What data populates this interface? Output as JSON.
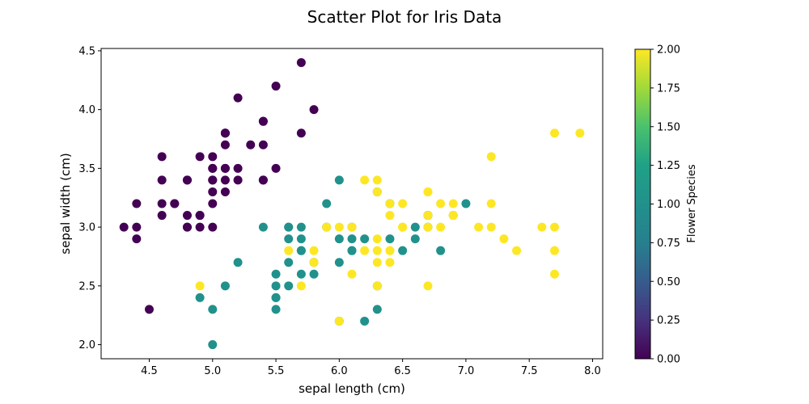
{
  "chart_data": {
    "type": "scatter",
    "title": "Scatter Plot for Iris Data",
    "xlabel": "sepal length (cm)",
    "ylabel": "sepal width (cm)",
    "xlim": [
      4.12,
      8.08
    ],
    "ylim": [
      1.88,
      4.52
    ],
    "x_ticks": [
      "4.5",
      "5.0",
      "5.5",
      "6.0",
      "6.5",
      "7.0",
      "7.5",
      "8.0"
    ],
    "y_ticks": [
      "2.0",
      "2.5",
      "3.0",
      "3.5",
      "4.0",
      "4.5"
    ],
    "grid": false,
    "colorbar": {
      "label": "Flower Species",
      "range": [
        0,
        2
      ],
      "colormap": "viridis",
      "ticks": [
        "0.00",
        "0.25",
        "0.50",
        "0.75",
        "1.00",
        "1.25",
        "1.50",
        "1.75",
        "2.00"
      ]
    },
    "colors": {
      "0": "#440154",
      "1": "#21918c",
      "2": "#fde725"
    },
    "points": [
      {
        "x": 5.1,
        "y": 3.5,
        "c": 0
      },
      {
        "x": 4.9,
        "y": 3.0,
        "c": 0
      },
      {
        "x": 4.7,
        "y": 3.2,
        "c": 0
      },
      {
        "x": 4.6,
        "y": 3.1,
        "c": 0
      },
      {
        "x": 5.0,
        "y": 3.6,
        "c": 0
      },
      {
        "x": 5.4,
        "y": 3.9,
        "c": 0
      },
      {
        "x": 4.6,
        "y": 3.4,
        "c": 0
      },
      {
        "x": 5.0,
        "y": 3.4,
        "c": 0
      },
      {
        "x": 4.4,
        "y": 2.9,
        "c": 0
      },
      {
        "x": 4.9,
        "y": 3.1,
        "c": 0
      },
      {
        "x": 5.4,
        "y": 3.7,
        "c": 0
      },
      {
        "x": 4.8,
        "y": 3.4,
        "c": 0
      },
      {
        "x": 4.8,
        "y": 3.0,
        "c": 0
      },
      {
        "x": 4.3,
        "y": 3.0,
        "c": 0
      },
      {
        "x": 5.8,
        "y": 4.0,
        "c": 0
      },
      {
        "x": 5.7,
        "y": 4.4,
        "c": 0
      },
      {
        "x": 5.4,
        "y": 3.9,
        "c": 0
      },
      {
        "x": 5.1,
        "y": 3.5,
        "c": 0
      },
      {
        "x": 5.7,
        "y": 3.8,
        "c": 0
      },
      {
        "x": 5.1,
        "y": 3.8,
        "c": 0
      },
      {
        "x": 5.4,
        "y": 3.4,
        "c": 0
      },
      {
        "x": 5.1,
        "y": 3.7,
        "c": 0
      },
      {
        "x": 4.6,
        "y": 3.6,
        "c": 0
      },
      {
        "x": 5.1,
        "y": 3.3,
        "c": 0
      },
      {
        "x": 4.8,
        "y": 3.4,
        "c": 0
      },
      {
        "x": 5.0,
        "y": 3.0,
        "c": 0
      },
      {
        "x": 5.0,
        "y": 3.4,
        "c": 0
      },
      {
        "x": 5.2,
        "y": 3.5,
        "c": 0
      },
      {
        "x": 5.2,
        "y": 3.4,
        "c": 0
      },
      {
        "x": 4.7,
        "y": 3.2,
        "c": 0
      },
      {
        "x": 4.8,
        "y": 3.1,
        "c": 0
      },
      {
        "x": 5.4,
        "y": 3.4,
        "c": 0
      },
      {
        "x": 5.2,
        "y": 4.1,
        "c": 0
      },
      {
        "x": 5.5,
        "y": 4.2,
        "c": 0
      },
      {
        "x": 4.9,
        "y": 3.1,
        "c": 0
      },
      {
        "x": 5.0,
        "y": 3.2,
        "c": 0
      },
      {
        "x": 5.5,
        "y": 3.5,
        "c": 0
      },
      {
        "x": 4.9,
        "y": 3.6,
        "c": 0
      },
      {
        "x": 4.4,
        "y": 3.0,
        "c": 0
      },
      {
        "x": 5.1,
        "y": 3.4,
        "c": 0
      },
      {
        "x": 5.0,
        "y": 3.5,
        "c": 0
      },
      {
        "x": 4.5,
        "y": 2.3,
        "c": 0
      },
      {
        "x": 4.4,
        "y": 3.2,
        "c": 0
      },
      {
        "x": 5.0,
        "y": 3.5,
        "c": 0
      },
      {
        "x": 5.1,
        "y": 3.8,
        "c": 0
      },
      {
        "x": 4.8,
        "y": 3.0,
        "c": 0
      },
      {
        "x": 5.1,
        "y": 3.8,
        "c": 0
      },
      {
        "x": 4.6,
        "y": 3.2,
        "c": 0
      },
      {
        "x": 5.3,
        "y": 3.7,
        "c": 0
      },
      {
        "x": 5.0,
        "y": 3.3,
        "c": 0
      },
      {
        "x": 7.0,
        "y": 3.2,
        "c": 1
      },
      {
        "x": 6.4,
        "y": 3.2,
        "c": 1
      },
      {
        "x": 6.9,
        "y": 3.1,
        "c": 1
      },
      {
        "x": 5.5,
        "y": 2.3,
        "c": 1
      },
      {
        "x": 6.5,
        "y": 2.8,
        "c": 1
      },
      {
        "x": 5.7,
        "y": 2.8,
        "c": 1
      },
      {
        "x": 6.3,
        "y": 3.3,
        "c": 1
      },
      {
        "x": 4.9,
        "y": 2.4,
        "c": 1
      },
      {
        "x": 6.6,
        "y": 2.9,
        "c": 1
      },
      {
        "x": 5.2,
        "y": 2.7,
        "c": 1
      },
      {
        "x": 5.0,
        "y": 2.0,
        "c": 1
      },
      {
        "x": 5.9,
        "y": 3.0,
        "c": 1
      },
      {
        "x": 6.0,
        "y": 2.2,
        "c": 1
      },
      {
        "x": 6.1,
        "y": 2.9,
        "c": 1
      },
      {
        "x": 5.6,
        "y": 2.9,
        "c": 1
      },
      {
        "x": 6.7,
        "y": 3.1,
        "c": 1
      },
      {
        "x": 5.6,
        "y": 3.0,
        "c": 1
      },
      {
        "x": 5.8,
        "y": 2.7,
        "c": 1
      },
      {
        "x": 6.2,
        "y": 2.2,
        "c": 1
      },
      {
        "x": 5.6,
        "y": 2.5,
        "c": 1
      },
      {
        "x": 5.9,
        "y": 3.2,
        "c": 1
      },
      {
        "x": 6.1,
        "y": 2.8,
        "c": 1
      },
      {
        "x": 6.3,
        "y": 2.5,
        "c": 1
      },
      {
        "x": 6.1,
        "y": 2.8,
        "c": 1
      },
      {
        "x": 6.4,
        "y": 2.9,
        "c": 1
      },
      {
        "x": 6.6,
        "y": 3.0,
        "c": 1
      },
      {
        "x": 6.8,
        "y": 2.8,
        "c": 1
      },
      {
        "x": 6.7,
        "y": 3.0,
        "c": 1
      },
      {
        "x": 6.0,
        "y": 2.9,
        "c": 1
      },
      {
        "x": 5.7,
        "y": 2.6,
        "c": 1
      },
      {
        "x": 5.5,
        "y": 2.4,
        "c": 1
      },
      {
        "x": 5.5,
        "y": 2.4,
        "c": 1
      },
      {
        "x": 5.8,
        "y": 2.7,
        "c": 1
      },
      {
        "x": 6.0,
        "y": 2.7,
        "c": 1
      },
      {
        "x": 5.4,
        "y": 3.0,
        "c": 1
      },
      {
        "x": 6.0,
        "y": 3.4,
        "c": 1
      },
      {
        "x": 6.7,
        "y": 3.1,
        "c": 1
      },
      {
        "x": 6.3,
        "y": 2.3,
        "c": 1
      },
      {
        "x": 5.6,
        "y": 3.0,
        "c": 1
      },
      {
        "x": 5.5,
        "y": 2.5,
        "c": 1
      },
      {
        "x": 5.5,
        "y": 2.6,
        "c": 1
      },
      {
        "x": 6.1,
        "y": 3.0,
        "c": 1
      },
      {
        "x": 5.8,
        "y": 2.6,
        "c": 1
      },
      {
        "x": 5.0,
        "y": 2.3,
        "c": 1
      },
      {
        "x": 5.6,
        "y": 2.7,
        "c": 1
      },
      {
        "x": 5.7,
        "y": 3.0,
        "c": 1
      },
      {
        "x": 5.7,
        "y": 2.9,
        "c": 1
      },
      {
        "x": 6.2,
        "y": 2.9,
        "c": 1
      },
      {
        "x": 5.1,
        "y": 2.5,
        "c": 1
      },
      {
        "x": 5.7,
        "y": 2.8,
        "c": 1
      },
      {
        "x": 6.3,
        "y": 3.3,
        "c": 2
      },
      {
        "x": 5.8,
        "y": 2.7,
        "c": 2
      },
      {
        "x": 7.1,
        "y": 3.0,
        "c": 2
      },
      {
        "x": 6.3,
        "y": 2.9,
        "c": 2
      },
      {
        "x": 6.5,
        "y": 3.0,
        "c": 2
      },
      {
        "x": 7.6,
        "y": 3.0,
        "c": 2
      },
      {
        "x": 4.9,
        "y": 2.5,
        "c": 2
      },
      {
        "x": 7.3,
        "y": 2.9,
        "c": 2
      },
      {
        "x": 6.7,
        "y": 2.5,
        "c": 2
      },
      {
        "x": 7.2,
        "y": 3.6,
        "c": 2
      },
      {
        "x": 6.5,
        "y": 3.2,
        "c": 2
      },
      {
        "x": 6.4,
        "y": 2.7,
        "c": 2
      },
      {
        "x": 6.8,
        "y": 3.0,
        "c": 2
      },
      {
        "x": 5.7,
        "y": 2.5,
        "c": 2
      },
      {
        "x": 5.8,
        "y": 2.8,
        "c": 2
      },
      {
        "x": 6.4,
        "y": 3.2,
        "c": 2
      },
      {
        "x": 6.5,
        "y": 3.0,
        "c": 2
      },
      {
        "x": 7.7,
        "y": 3.8,
        "c": 2
      },
      {
        "x": 7.7,
        "y": 2.6,
        "c": 2
      },
      {
        "x": 6.0,
        "y": 2.2,
        "c": 2
      },
      {
        "x": 6.9,
        "y": 3.2,
        "c": 2
      },
      {
        "x": 5.6,
        "y": 2.8,
        "c": 2
      },
      {
        "x": 7.7,
        "y": 2.8,
        "c": 2
      },
      {
        "x": 6.3,
        "y": 2.7,
        "c": 2
      },
      {
        "x": 6.7,
        "y": 3.3,
        "c": 2
      },
      {
        "x": 7.2,
        "y": 3.2,
        "c": 2
      },
      {
        "x": 6.2,
        "y": 2.8,
        "c": 2
      },
      {
        "x": 6.1,
        "y": 3.0,
        "c": 2
      },
      {
        "x": 6.4,
        "y": 2.8,
        "c": 2
      },
      {
        "x": 7.2,
        "y": 3.0,
        "c": 2
      },
      {
        "x": 7.4,
        "y": 2.8,
        "c": 2
      },
      {
        "x": 7.9,
        "y": 3.8,
        "c": 2
      },
      {
        "x": 6.4,
        "y": 2.8,
        "c": 2
      },
      {
        "x": 6.3,
        "y": 2.8,
        "c": 2
      },
      {
        "x": 6.1,
        "y": 2.6,
        "c": 2
      },
      {
        "x": 7.7,
        "y": 3.0,
        "c": 2
      },
      {
        "x": 6.3,
        "y": 3.4,
        "c": 2
      },
      {
        "x": 6.4,
        "y": 3.1,
        "c": 2
      },
      {
        "x": 6.0,
        "y": 3.0,
        "c": 2
      },
      {
        "x": 6.9,
        "y": 3.1,
        "c": 2
      },
      {
        "x": 6.7,
        "y": 3.1,
        "c": 2
      },
      {
        "x": 6.9,
        "y": 3.1,
        "c": 2
      },
      {
        "x": 5.8,
        "y": 2.7,
        "c": 2
      },
      {
        "x": 6.8,
        "y": 3.2,
        "c": 2
      },
      {
        "x": 6.7,
        "y": 3.3,
        "c": 2
      },
      {
        "x": 6.7,
        "y": 3.0,
        "c": 2
      },
      {
        "x": 6.3,
        "y": 2.5,
        "c": 2
      },
      {
        "x": 6.5,
        "y": 3.0,
        "c": 2
      },
      {
        "x": 6.2,
        "y": 3.4,
        "c": 2
      },
      {
        "x": 5.9,
        "y": 3.0,
        "c": 2
      }
    ]
  }
}
